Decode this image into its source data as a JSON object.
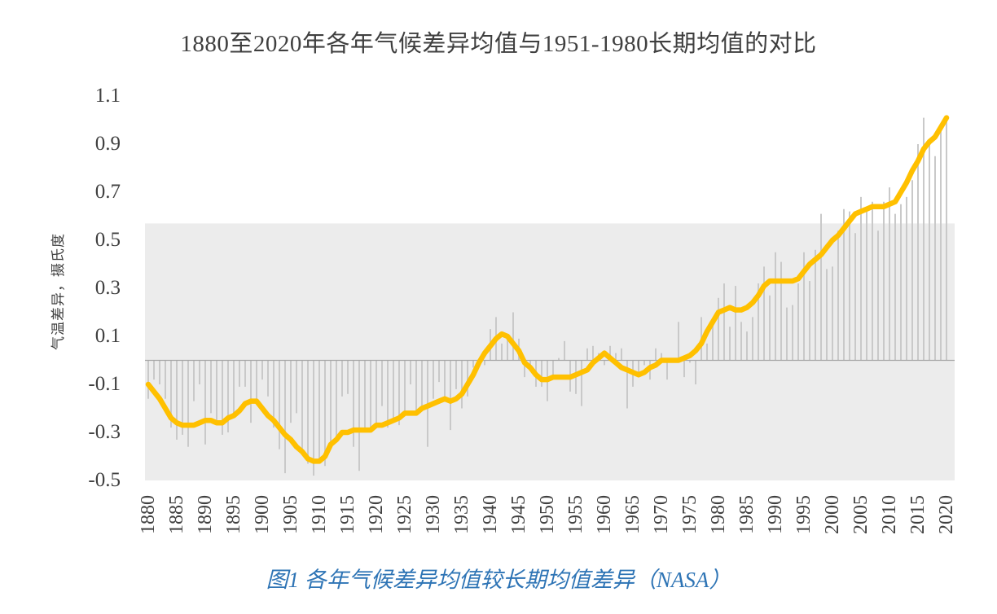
{
  "page": {
    "title": "1880至2020年各年气候差异均值与1951-1980长期均值的对比",
    "caption": "图1 各年气候差异均值较长期均值差异（NASA）"
  },
  "chart_data": {
    "type": "bar",
    "title": "1880至2020年各年气候差异均值与1951-1980长期均值的对比",
    "xlabel": "",
    "ylabel": "气温差异，摄氏度",
    "ylim": [
      -0.5,
      1.1
    ],
    "grid": false,
    "legend_position": "none",
    "y_ticks": [
      "1.1",
      "0.9",
      "0.7",
      "0.5",
      "0.3",
      "0.1",
      "-0.1",
      "-0.3",
      "-0.5"
    ],
    "x_ticks": [
      "1880",
      "1885",
      "1890",
      "1895",
      "1900",
      "1905",
      "1910",
      "1915",
      "1920",
      "1925",
      "1930",
      "1935",
      "1940",
      "1945",
      "1950",
      "1955",
      "1960",
      "1965",
      "1970",
      "1975",
      "1980",
      "1985",
      "1990",
      "1995",
      "2000",
      "2005",
      "2010",
      "2015",
      "2020"
    ],
    "x_start_year": 1880,
    "x_end_year": 2020,
    "band_range": [
      -0.5,
      0.57
    ],
    "series": [
      {
        "name": "annual_anomaly",
        "type": "bar",
        "values": [
          -0.16,
          -0.08,
          -0.1,
          -0.16,
          -0.28,
          -0.33,
          -0.31,
          -0.36,
          -0.17,
          -0.1,
          -0.35,
          -0.22,
          -0.27,
          -0.31,
          -0.3,
          -0.22,
          -0.11,
          -0.11,
          -0.26,
          -0.17,
          -0.08,
          -0.15,
          -0.28,
          -0.37,
          -0.47,
          -0.26,
          -0.22,
          -0.38,
          -0.43,
          -0.48,
          -0.43,
          -0.44,
          -0.36,
          -0.34,
          -0.15,
          -0.14,
          -0.36,
          -0.46,
          -0.3,
          -0.28,
          -0.27,
          -0.19,
          -0.28,
          -0.26,
          -0.27,
          -0.22,
          -0.1,
          -0.21,
          -0.2,
          -0.36,
          -0.16,
          -0.09,
          -0.16,
          -0.29,
          -0.12,
          -0.2,
          -0.15,
          -0.03,
          0.0,
          -0.02,
          0.13,
          0.18,
          0.07,
          0.09,
          0.2,
          0.09,
          -0.07,
          -0.03,
          -0.11,
          -0.11,
          -0.17,
          -0.07,
          0.01,
          0.08,
          -0.13,
          -0.14,
          -0.19,
          0.05,
          0.06,
          0.03,
          -0.02,
          0.06,
          0.03,
          0.05,
          -0.2,
          -0.11,
          -0.06,
          -0.02,
          -0.08,
          0.05,
          0.03,
          -0.08,
          0.01,
          0.16,
          -0.07,
          -0.01,
          -0.1,
          0.18,
          0.07,
          0.16,
          0.26,
          0.32,
          0.14,
          0.31,
          0.16,
          0.12,
          0.18,
          0.32,
          0.39,
          0.27,
          0.45,
          0.41,
          0.22,
          0.23,
          0.32,
          0.45,
          0.33,
          0.46,
          0.61,
          0.38,
          0.39,
          0.54,
          0.63,
          0.62,
          0.53,
          0.68,
          0.64,
          0.66,
          0.54,
          0.66,
          0.72,
          0.61,
          0.65,
          0.68,
          0.75,
          0.9,
          1.01,
          0.92,
          0.85,
          0.98,
          1.02
        ]
      },
      {
        "name": "smoothed_mean",
        "type": "line",
        "values": [
          -0.1,
          -0.13,
          -0.16,
          -0.2,
          -0.24,
          -0.26,
          -0.27,
          -0.27,
          -0.27,
          -0.26,
          -0.25,
          -0.25,
          -0.26,
          -0.26,
          -0.24,
          -0.23,
          -0.21,
          -0.18,
          -0.17,
          -0.17,
          -0.2,
          -0.23,
          -0.25,
          -0.28,
          -0.31,
          -0.33,
          -0.36,
          -0.38,
          -0.41,
          -0.42,
          -0.42,
          -0.4,
          -0.35,
          -0.33,
          -0.3,
          -0.3,
          -0.29,
          -0.29,
          -0.29,
          -0.29,
          -0.27,
          -0.27,
          -0.26,
          -0.25,
          -0.24,
          -0.22,
          -0.22,
          -0.22,
          -0.2,
          -0.19,
          -0.18,
          -0.17,
          -0.16,
          -0.17,
          -0.16,
          -0.14,
          -0.1,
          -0.06,
          -0.01,
          0.03,
          0.06,
          0.09,
          0.11,
          0.1,
          0.07,
          0.04,
          -0.01,
          -0.03,
          -0.06,
          -0.08,
          -0.08,
          -0.07,
          -0.07,
          -0.07,
          -0.07,
          -0.06,
          -0.05,
          -0.04,
          -0.01,
          0.01,
          0.03,
          0.01,
          -0.01,
          -0.03,
          -0.04,
          -0.05,
          -0.06,
          -0.05,
          -0.03,
          -0.02,
          0.0,
          0.0,
          0.0,
          0.0,
          0.01,
          0.02,
          0.04,
          0.07,
          0.12,
          0.16,
          0.2,
          0.21,
          0.22,
          0.21,
          0.21,
          0.22,
          0.24,
          0.27,
          0.31,
          0.33,
          0.33,
          0.33,
          0.33,
          0.33,
          0.34,
          0.37,
          0.4,
          0.42,
          0.44,
          0.47,
          0.5,
          0.52,
          0.55,
          0.58,
          0.61,
          0.62,
          0.63,
          0.64,
          0.64,
          0.64,
          0.65,
          0.66,
          0.7,
          0.74,
          0.79,
          0.83,
          0.88,
          0.91,
          0.93,
          0.97,
          1.01
        ]
      }
    ],
    "colors": {
      "bar": "#c9c9c9",
      "line": "#FFC000",
      "zero_line": "#a6a6a6",
      "band": "#ececec",
      "text": "#404040",
      "caption": "#2E74B5"
    }
  }
}
